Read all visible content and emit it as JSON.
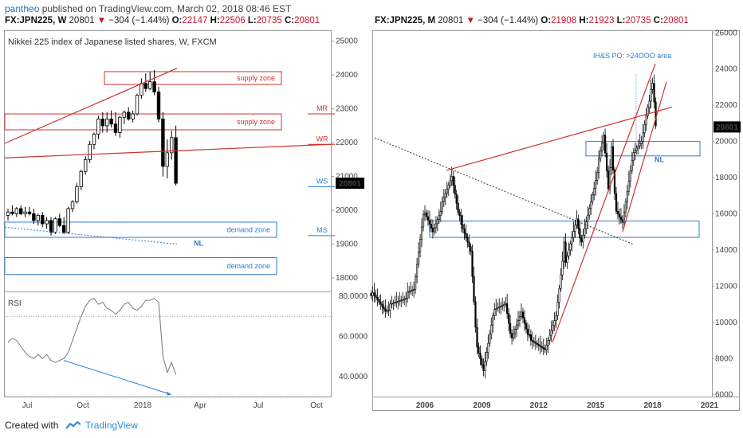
{
  "header": {
    "user": "pantheo",
    "published": " published on TradingView.com, March 02, 2018 08:46 EST"
  },
  "left_ohlc": {
    "symbol": "FX:JPN225, W",
    "last": "20801",
    "change": "−304 (−1.44%)",
    "o_label": "O:",
    "o": "22147",
    "h_label": "H:",
    "h": "22506",
    "l_label": "L:",
    "l": "20735",
    "c_label": "C:",
    "c": "20801"
  },
  "right_ohlc": {
    "symbol": "FX:JPN225, M",
    "last": "20801",
    "change": "−304 (−1.44%)",
    "o_label": "O:",
    "o": "21908",
    "h_label": "H:",
    "h": "21923",
    "l_label": "L:",
    "l": "20735",
    "c_label": "C:",
    "c": "20801"
  },
  "footer": {
    "created_with": "Created with",
    "brand": "TradingView"
  },
  "colors": {
    "up": "#ffffff",
    "down": "#000000",
    "trend_red": "#d0312d",
    "zone_red": "#d0312d",
    "zone_blue": "#2f7bd0",
    "rsi_line": "#777777",
    "price_badge": "#000000"
  },
  "chart_data": [
    {
      "type": "candlestick",
      "panel": "left-weekly",
      "title": "Nikkei 225 index of Japanese listed shares, W, FXCM",
      "x_ticks": [
        "Jul",
        "Oct",
        "2018",
        "Apr",
        "Jul",
        "Oct"
      ],
      "y_ticks": [
        "18000",
        "19000",
        "20000",
        "21000",
        "22000",
        "23000",
        "24000",
        "25000"
      ],
      "ylim": [
        17600,
        25300
      ],
      "last_price": "20801",
      "candles": [
        [
          19850,
          20050,
          19700,
          19950
        ],
        [
          19950,
          20150,
          19850,
          19900
        ],
        [
          19900,
          20100,
          19800,
          20050
        ],
        [
          20050,
          20150,
          19850,
          19900
        ],
        [
          19900,
          20100,
          19800,
          19950
        ],
        [
          19950,
          20100,
          19850,
          19900
        ],
        [
          19900,
          20050,
          19600,
          19700
        ],
        [
          19700,
          19900,
          19550,
          19850
        ],
        [
          19850,
          19950,
          19500,
          19600
        ],
        [
          19600,
          19800,
          19450,
          19700
        ],
        [
          19700,
          19800,
          19250,
          19350
        ],
        [
          19350,
          19800,
          19300,
          19750
        ],
        [
          19750,
          19900,
          19500,
          19550
        ],
        [
          19550,
          19800,
          19300,
          19350
        ],
        [
          19350,
          20100,
          19300,
          20050
        ],
        [
          20050,
          20300,
          19950,
          20250
        ],
        [
          20250,
          20800,
          20200,
          20700
        ],
        [
          20700,
          21200,
          20600,
          21150
        ],
        [
          21150,
          21600,
          21050,
          21500
        ],
        [
          21500,
          22050,
          21400,
          21950
        ],
        [
          21950,
          22300,
          21800,
          22250
        ],
        [
          22250,
          22800,
          22100,
          22700
        ],
        [
          22700,
          22900,
          22300,
          22500
        ],
        [
          22500,
          22900,
          22300,
          22700
        ],
        [
          22700,
          22950,
          22450,
          22550
        ],
        [
          22550,
          22900,
          22200,
          22300
        ],
        [
          22300,
          22800,
          22150,
          22750
        ],
        [
          22750,
          22950,
          22550,
          22900
        ],
        [
          22900,
          23050,
          22650,
          22700
        ],
        [
          22700,
          22950,
          22600,
          22850
        ],
        [
          22850,
          23450,
          22800,
          23400
        ],
        [
          23400,
          23900,
          23300,
          23750
        ],
        [
          23750,
          24050,
          23500,
          23600
        ],
        [
          23600,
          24100,
          23550,
          23800
        ],
        [
          23800,
          24150,
          23400,
          23500
        ],
        [
          23500,
          23650,
          22600,
          22700
        ],
        [
          22700,
          22900,
          21000,
          21300
        ],
        [
          21300,
          22100,
          20950,
          21700
        ],
        [
          21700,
          22350,
          21500,
          22150
        ],
        [
          22147,
          22506,
          20735,
          20801
        ]
      ],
      "horizontal_lines": [
        {
          "label": "MR",
          "value": 22850
        },
        {
          "label": "WR",
          "value": 21950
        },
        {
          "label": "WS",
          "value": 20700
        },
        {
          "label": "MS",
          "value": 19250
        }
      ],
      "zones": [
        {
          "label": "supply zone",
          "top": 24100,
          "bottom": 23720,
          "color": "red"
        },
        {
          "label": "supply zone",
          "top": 22850,
          "bottom": 22380,
          "color": "red"
        },
        {
          "label": "demand zone",
          "top": 19650,
          "bottom": 19200,
          "color": "blue"
        },
        {
          "label": "demand zone",
          "top": 18600,
          "bottom": 18100,
          "color": "blue"
        }
      ],
      "annotations": [
        "NL"
      ],
      "rsi": {
        "label": "RSI",
        "y_ticks": [
          "40.0000",
          "60.0000",
          "80.0000"
        ],
        "ylim": [
          30,
          82
        ],
        "bands": [
          70,
          30
        ],
        "values": [
          57,
          59,
          58,
          55,
          52,
          50,
          49,
          51,
          49,
          51,
          48,
          47,
          48,
          49,
          52,
          58,
          64,
          70,
          75,
          78,
          79,
          76,
          77,
          74,
          73,
          71,
          73,
          76,
          77,
          74,
          73,
          75,
          78,
          78,
          79,
          77,
          50,
          42,
          47,
          41
        ]
      }
    },
    {
      "type": "candlestick",
      "panel": "right-monthly",
      "x_ticks": [
        "2006",
        "2009",
        "2012",
        "2015",
        "2018",
        "2021"
      ],
      "y_ticks": [
        "6000",
        "8000",
        "10000",
        "12000",
        "14000",
        "16000",
        "18000",
        "20000",
        "22000",
        "24000",
        "26000"
      ],
      "ylim": [
        5900,
        26100
      ],
      "last_price": "20801",
      "annotations": [
        "IH&S PO: >24OOO area",
        "NL"
      ],
      "zones": [
        {
          "top": 20000,
          "bottom": 19200,
          "color": "blue"
        },
        {
          "top": 15600,
          "bottom": 14700,
          "color": "blue"
        }
      ],
      "anchors": [
        [
          "2003-03",
          11600
        ],
        [
          "2003-12",
          10700
        ],
        [
          "2004-12",
          11400
        ],
        [
          "2005-06",
          11800
        ],
        [
          "2005-12",
          16100
        ],
        [
          "2006-06",
          15000
        ],
        [
          "2007-03",
          17300
        ],
        [
          "2007-06",
          18100
        ],
        [
          "2007-12",
          15300
        ],
        [
          "2008-06",
          14000
        ],
        [
          "2008-10",
          8500
        ],
        [
          "2009-02",
          7300
        ],
        [
          "2009-08",
          10500
        ],
        [
          "2010-04",
          11100
        ],
        [
          "2010-08",
          9000
        ],
        [
          "2011-02",
          10600
        ],
        [
          "2011-08",
          8900
        ],
        [
          "2012-06",
          8600
        ],
        [
          "2012-12",
          10400
        ],
        [
          "2013-05",
          14300
        ],
        [
          "2013-06",
          13200
        ],
        [
          "2014-01",
          15800
        ],
        [
          "2014-04",
          14300
        ],
        [
          "2014-12",
          17500
        ],
        [
          "2015-06",
          20300
        ],
        [
          "2015-09",
          17400
        ],
        [
          "2015-11",
          19800
        ],
        [
          "2016-02",
          16000
        ],
        [
          "2016-06",
          15500
        ],
        [
          "2016-12",
          19100
        ],
        [
          "2017-06",
          20000
        ],
        [
          "2017-10",
          22000
        ],
        [
          "2018-01",
          23100
        ],
        [
          "2018-02",
          22100
        ],
        [
          "2018-03",
          20801
        ]
      ]
    }
  ]
}
